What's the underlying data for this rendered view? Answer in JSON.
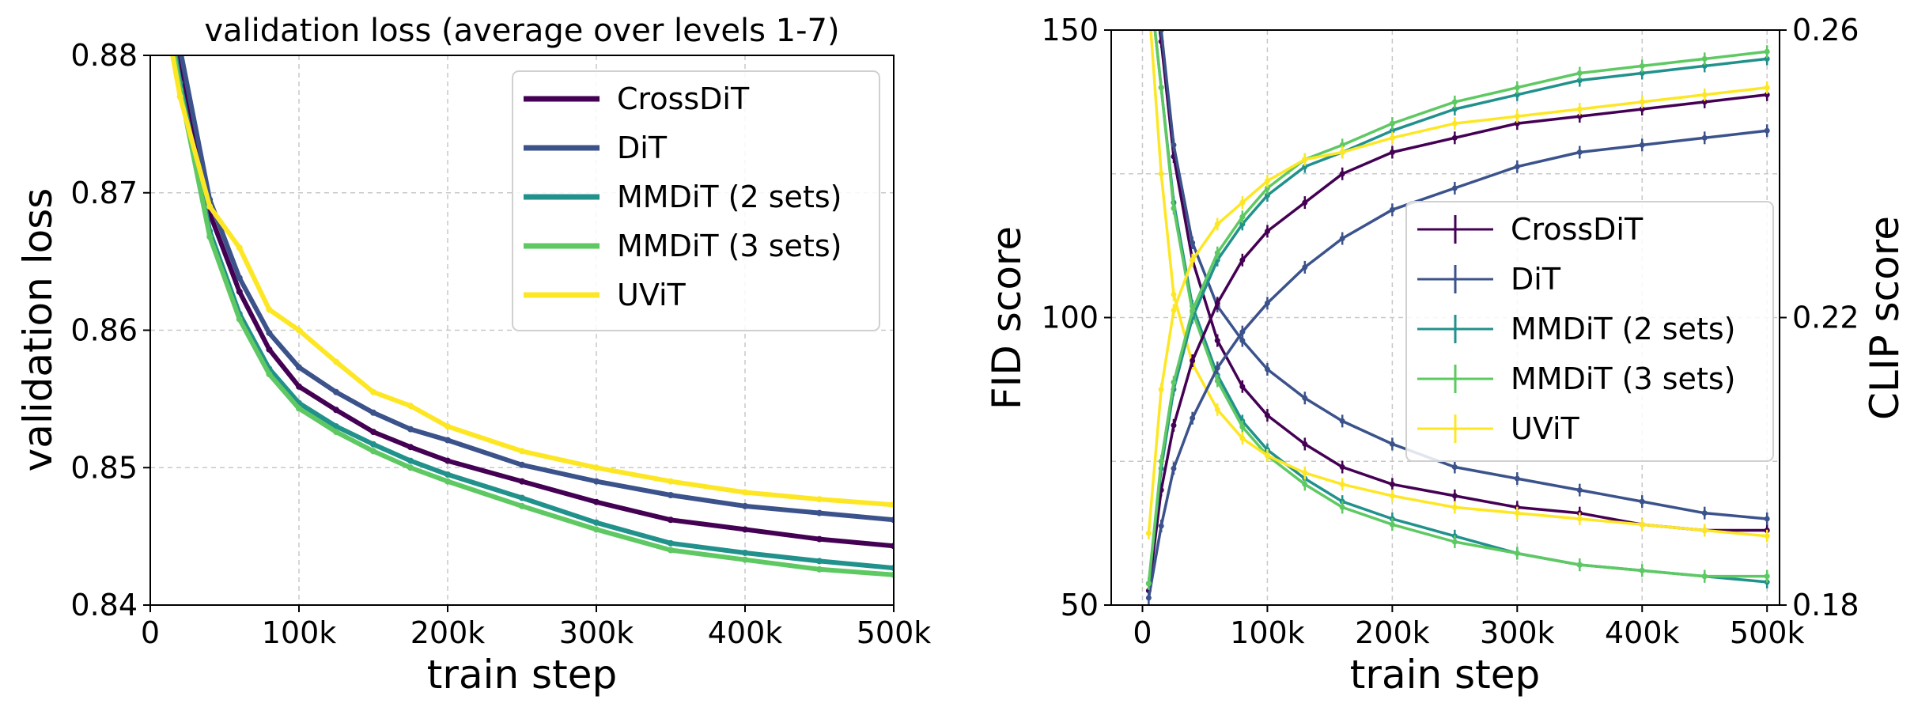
{
  "chart_data": [
    {
      "type": "line",
      "title": "validation loss (average over levels 1-7)",
      "xlabel": "train step",
      "ylabel": "validation loss",
      "xlim": [
        0,
        500000
      ],
      "ylim": [
        0.84,
        0.88
      ],
      "xticks": [
        0,
        100000,
        200000,
        300000,
        400000,
        500000
      ],
      "xtick_labels": [
        "0",
        "100k",
        "200k",
        "300k",
        "400k",
        "500k"
      ],
      "yticks": [
        0.84,
        0.85,
        0.86,
        0.87,
        0.88
      ],
      "ytick_labels": [
        "0.84",
        "0.85",
        "0.86",
        "0.87",
        "0.88"
      ],
      "grid": true,
      "legend_position": "upper-right",
      "series": [
        {
          "name": "CrossDiT",
          "color": "#440154",
          "x": [
            0,
            20000,
            40000,
            60000,
            80000,
            100000,
            125000,
            150000,
            175000,
            200000,
            250000,
            300000,
            350000,
            400000,
            450000,
            500000
          ],
          "y": [
            0.8915,
            0.879,
            0.8685,
            0.8628,
            0.8586,
            0.8559,
            0.8542,
            0.8526,
            0.8515,
            0.8505,
            0.849,
            0.8475,
            0.8462,
            0.8455,
            0.8448,
            0.8443
          ]
        },
        {
          "name": "DiT",
          "color": "#3b528b",
          "x": [
            0,
            20000,
            40000,
            60000,
            80000,
            100000,
            125000,
            150000,
            175000,
            200000,
            250000,
            300000,
            350000,
            400000,
            450000,
            500000
          ],
          "y": [
            0.8925,
            0.8805,
            0.8695,
            0.8638,
            0.8598,
            0.8573,
            0.8555,
            0.854,
            0.8528,
            0.852,
            0.8502,
            0.849,
            0.848,
            0.8472,
            0.8467,
            0.8462
          ]
        },
        {
          "name": "MMDiT (2 sets)",
          "color": "#21918c",
          "x": [
            0,
            20000,
            40000,
            60000,
            80000,
            100000,
            125000,
            150000,
            175000,
            200000,
            250000,
            300000,
            350000,
            400000,
            450000,
            500000
          ],
          "y": [
            0.891,
            0.878,
            0.8672,
            0.8612,
            0.8572,
            0.8547,
            0.853,
            0.8517,
            0.8505,
            0.8495,
            0.8478,
            0.846,
            0.8445,
            0.8438,
            0.8432,
            0.8427
          ]
        },
        {
          "name": "MMDiT (3 sets)",
          "color": "#5ec962",
          "x": [
            0,
            20000,
            40000,
            60000,
            80000,
            100000,
            125000,
            150000,
            175000,
            200000,
            250000,
            300000,
            350000,
            400000,
            450000,
            500000
          ],
          "y": [
            0.8905,
            0.8775,
            0.8668,
            0.8608,
            0.8568,
            0.8543,
            0.8526,
            0.8512,
            0.85,
            0.849,
            0.8472,
            0.8455,
            0.844,
            0.8433,
            0.8426,
            0.8422
          ]
        },
        {
          "name": "UViT",
          "color": "#fde725",
          "x": [
            0,
            20000,
            40000,
            60000,
            80000,
            100000,
            125000,
            150000,
            175000,
            200000,
            250000,
            300000,
            350000,
            400000,
            450000,
            500000
          ],
          "y": [
            0.889,
            0.877,
            0.869,
            0.866,
            0.8615,
            0.86,
            0.8577,
            0.8555,
            0.8545,
            0.853,
            0.8512,
            0.85,
            0.849,
            0.8482,
            0.8477,
            0.8473
          ]
        }
      ]
    },
    {
      "type": "line",
      "title": "",
      "xlabel": "train step",
      "ylabel": "FID score",
      "y2label": "CLIP score",
      "xlim": [
        -25000,
        510000
      ],
      "ylim": [
        50,
        150
      ],
      "y2lim": [
        0.18,
        0.26
      ],
      "xticks": [
        0,
        100000,
        200000,
        300000,
        400000,
        500000
      ],
      "xtick_labels": [
        "0",
        "100k",
        "200k",
        "300k",
        "400k",
        "500k"
      ],
      "yticks": [
        50,
        100,
        150
      ],
      "ytick_labels": [
        "50",
        "100",
        "150"
      ],
      "y2ticks": [
        0.18,
        0.22,
        0.26
      ],
      "y2tick_labels": [
        "0.18",
        "0.22",
        "0.26"
      ],
      "grid": true,
      "legend_position": "center-right",
      "fid_series": [
        {
          "name": "CrossDiT",
          "color": "#440154",
          "x": [
            5000,
            15000,
            25000,
            40000,
            60000,
            80000,
            100000,
            130000,
            160000,
            200000,
            250000,
            300000,
            350000,
            400000,
            450000,
            500000
          ],
          "y": [
            165,
            148,
            128,
            110,
            96,
            88,
            83,
            78,
            74,
            71,
            69,
            67,
            66,
            64,
            63,
            63
          ]
        },
        {
          "name": "DiT",
          "color": "#3b528b",
          "x": [
            5000,
            15000,
            25000,
            40000,
            60000,
            80000,
            100000,
            130000,
            160000,
            200000,
            250000,
            300000,
            350000,
            400000,
            450000,
            500000
          ],
          "y": [
            165,
            150,
            130,
            113,
            102,
            96,
            91,
            86,
            82,
            78,
            74,
            72,
            70,
            68,
            66,
            65
          ]
        },
        {
          "name": "MMDiT (2 sets)",
          "color": "#21918c",
          "x": [
            5000,
            15000,
            25000,
            40000,
            60000,
            80000,
            100000,
            130000,
            160000,
            200000,
            250000,
            300000,
            350000,
            400000,
            450000,
            500000
          ],
          "y": [
            160,
            140,
            120,
            102,
            90,
            82,
            77,
            72,
            68,
            65,
            62,
            59,
            57,
            56,
            55,
            54
          ]
        },
        {
          "name": "MMDiT (3 sets)",
          "color": "#5ec962",
          "x": [
            5000,
            15000,
            25000,
            40000,
            60000,
            80000,
            100000,
            130000,
            160000,
            200000,
            250000,
            300000,
            350000,
            400000,
            450000,
            500000
          ],
          "y": [
            160,
            140,
            119,
            101,
            89,
            81,
            76,
            71,
            67,
            64,
            61,
            59,
            57,
            56,
            55,
            55
          ]
        },
        {
          "name": "UViT",
          "color": "#fde725",
          "x": [
            5000,
            15000,
            25000,
            40000,
            60000,
            80000,
            100000,
            130000,
            160000,
            200000,
            250000,
            300000,
            350000,
            400000,
            450000,
            500000
          ],
          "y": [
            155,
            125,
            104,
            92,
            84,
            79,
            76,
            73,
            71,
            69,
            67,
            66,
            65,
            64,
            63,
            62
          ]
        }
      ],
      "clip_series": [
        {
          "name": "CrossDiT",
          "color": "#440154",
          "x": [
            5000,
            15000,
            25000,
            40000,
            60000,
            80000,
            100000,
            130000,
            160000,
            200000,
            250000,
            300000,
            350000,
            400000,
            450000,
            500000
          ],
          "y": [
            0.182,
            0.196,
            0.205,
            0.214,
            0.222,
            0.228,
            0.232,
            0.236,
            0.24,
            0.243,
            0.245,
            0.247,
            0.248,
            0.249,
            0.25,
            0.251
          ]
        },
        {
          "name": "DiT",
          "color": "#3b528b",
          "x": [
            5000,
            15000,
            25000,
            40000,
            60000,
            80000,
            100000,
            130000,
            160000,
            200000,
            250000,
            300000,
            350000,
            400000,
            450000,
            500000
          ],
          "y": [
            0.181,
            0.191,
            0.199,
            0.206,
            0.213,
            0.218,
            0.222,
            0.227,
            0.231,
            0.235,
            0.238,
            0.241,
            0.243,
            0.244,
            0.245,
            0.246
          ]
        },
        {
          "name": "MMDiT (2 sets)",
          "color": "#21918c",
          "x": [
            5000,
            15000,
            25000,
            40000,
            60000,
            80000,
            100000,
            130000,
            160000,
            200000,
            250000,
            300000,
            350000,
            400000,
            450000,
            500000
          ],
          "y": [
            0.183,
            0.199,
            0.21,
            0.22,
            0.228,
            0.233,
            0.237,
            0.241,
            0.243,
            0.246,
            0.249,
            0.251,
            0.253,
            0.254,
            0.255,
            0.256
          ]
        },
        {
          "name": "MMDiT (3 sets)",
          "color": "#5ec962",
          "x": [
            5000,
            15000,
            25000,
            40000,
            60000,
            80000,
            100000,
            130000,
            160000,
            200000,
            250000,
            300000,
            350000,
            400000,
            450000,
            500000
          ],
          "y": [
            0.183,
            0.2,
            0.211,
            0.221,
            0.229,
            0.234,
            0.238,
            0.242,
            0.244,
            0.247,
            0.25,
            0.252,
            0.254,
            0.255,
            0.256,
            0.257
          ]
        },
        {
          "name": "UViT",
          "color": "#fde725",
          "x": [
            5000,
            15000,
            25000,
            40000,
            60000,
            80000,
            100000,
            130000,
            160000,
            200000,
            250000,
            300000,
            350000,
            400000,
            450000,
            500000
          ],
          "y": [
            0.19,
            0.21,
            0.221,
            0.228,
            0.233,
            0.236,
            0.239,
            0.242,
            0.243,
            0.245,
            0.247,
            0.248,
            0.249,
            0.25,
            0.251,
            0.252
          ]
        }
      ]
    }
  ],
  "legends": {
    "left": [
      "CrossDiT",
      "DiT",
      "MMDiT (2 sets)",
      "MMDiT (3 sets)",
      "UViT"
    ],
    "right": [
      "CrossDiT",
      "DiT",
      "MMDiT (2 sets)",
      "MMDiT (3 sets)",
      "UViT"
    ]
  }
}
